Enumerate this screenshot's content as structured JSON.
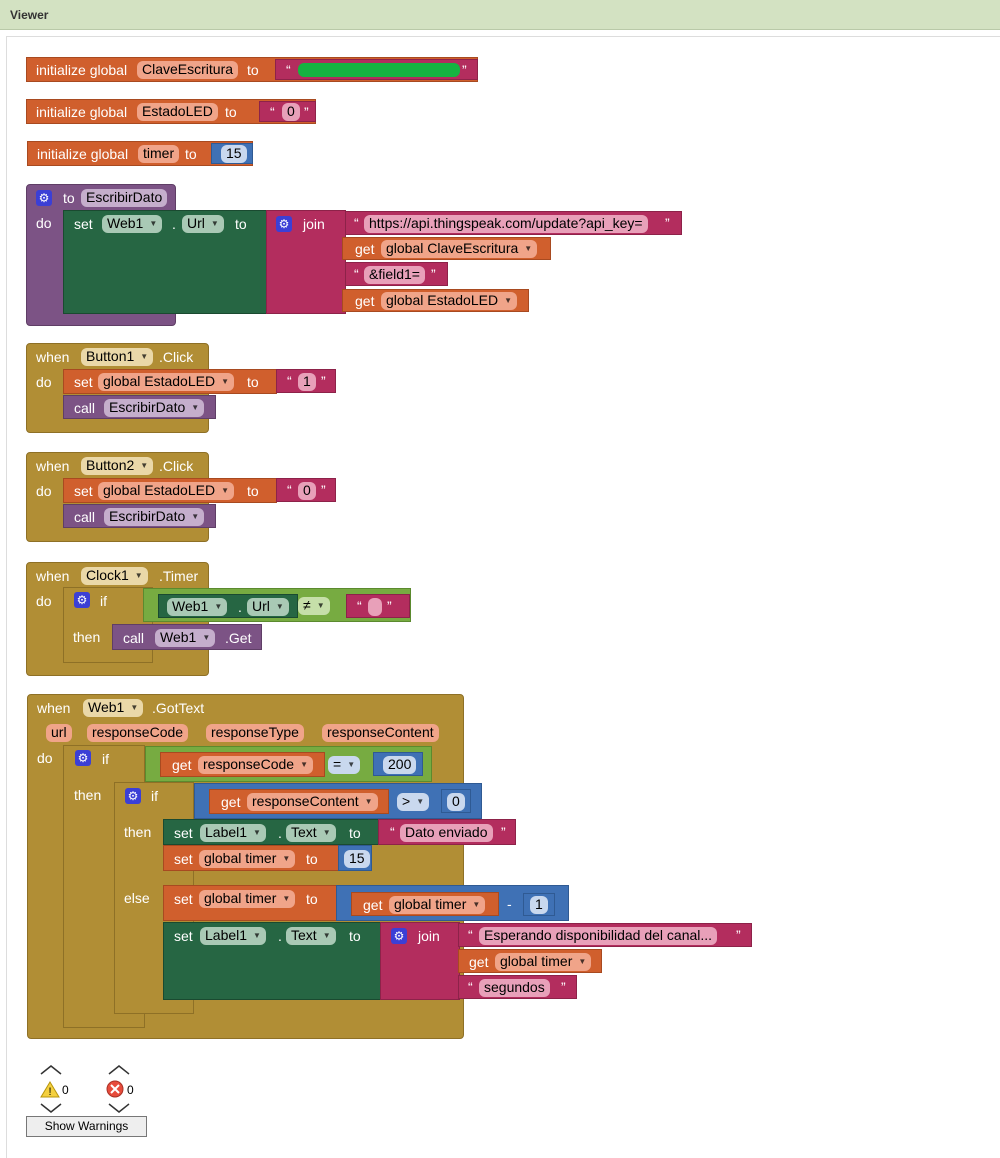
{
  "header": {
    "title": "Viewer"
  },
  "globals": {
    "init_label": "initialize global",
    "to": "to",
    "clave": {
      "name": "ClaveEscritura",
      "value": ""
    },
    "estado": {
      "name": "EstadoLED",
      "value": "0"
    },
    "timer": {
      "name": "timer",
      "value": "15"
    }
  },
  "proc": {
    "to_label": "to",
    "name": "EscribirDato",
    "do": "do",
    "set": "set",
    "component": "Web1",
    "property": "Url",
    "to": "to",
    "join": "join",
    "url_text": "https://api.thingspeak.com/update?api_key=",
    "get": "get",
    "get_clave": "global ClaveEscritura",
    "field_text": "&field1=",
    "get_estado": "global EstadoLED"
  },
  "btn1": {
    "when": "when",
    "component": "Button1",
    "event": ".Click",
    "do": "do",
    "set": "set",
    "var": "global EstadoLED",
    "to": "to",
    "value": "1",
    "call": "call",
    "proc": "EscribirDato"
  },
  "btn2": {
    "when": "when",
    "component": "Button2",
    "event": ".Click",
    "do": "do",
    "set": "set",
    "var": "global EstadoLED",
    "to": "to",
    "value": "0",
    "call": "call",
    "proc": "EscribirDato"
  },
  "clock": {
    "when": "when",
    "component": "Clock1",
    "event": ".Timer",
    "do": "do",
    "if": "if",
    "then": "then",
    "web": "Web1",
    "prop": "Url",
    "op": "≠",
    "text": "",
    "call": "call",
    "call_comp": "Web1",
    "call_method": ".Get"
  },
  "gottext": {
    "when": "when",
    "component": "Web1",
    "event": ".GotText",
    "params": [
      "url",
      "responseCode",
      "responseType",
      "responseContent"
    ],
    "do": "do",
    "if": "if",
    "then": "then",
    "else": "else",
    "get": "get",
    "responseCode": "responseCode",
    "eq": "=",
    "code": "200",
    "responseContent": "responseContent",
    "gt": ">",
    "zero": "0",
    "set": "set",
    "label": "Label1",
    "text_prop": "Text",
    "to": "to",
    "dato_enviado": "Dato enviado",
    "global_timer": "global timer",
    "fifteen": "15",
    "minus": "-",
    "one": "1",
    "join": "join",
    "esperando": "Esperando disponibilidad del canal...",
    "segundos": "segundos"
  },
  "counters": {
    "warnings": "0",
    "errors": "0",
    "show_warnings": "Show Warnings"
  }
}
